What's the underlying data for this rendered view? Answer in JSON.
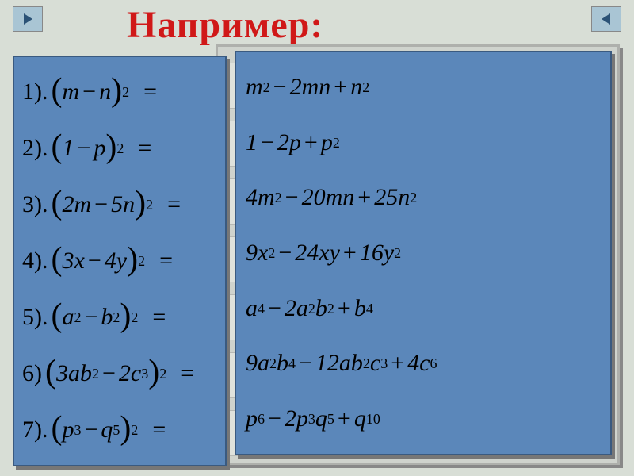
{
  "title": "Например:",
  "colors": {
    "background": "#d8ded6",
    "panel": "#5b87ba",
    "panel_border": "#3a5a80",
    "nav_button": "#a9c5d4",
    "title": "#d01818",
    "back_panel": "#cfd3cd",
    "back_row": "#dfe2dc"
  },
  "nav": {
    "prev_icon": "triangle-right",
    "next_icon": "triangle-left"
  },
  "back_panel": {
    "row_count": 7,
    "row_top_start": 20,
    "row_spacing": 73
  },
  "problems": [
    {
      "label": "1).",
      "a": "m",
      "op": "−",
      "b": "n",
      "exp": "2"
    },
    {
      "label": "2).",
      "a": "1",
      "op": "−",
      "b": "p",
      "exp": "2"
    },
    {
      "label": "3).",
      "a": "2m",
      "op": "−",
      "b": "5n",
      "exp": "2"
    },
    {
      "label": "4).",
      "a": "3x",
      "op": "−",
      "b": "4y",
      "exp": "2"
    },
    {
      "label": "5).",
      "a": "a",
      "asup": "2",
      "op": "−",
      "b": "b",
      "bsup": "2",
      "exp": "2"
    },
    {
      "label": "6)",
      "a": "3ab",
      "asup": "2",
      "op": "−",
      "b": "2c",
      "bsup": "3",
      "exp": "2"
    },
    {
      "label": "7).",
      "a": "p",
      "asup": "3",
      "op": "−",
      "b": "q",
      "bsup": "5",
      "exp": "2"
    }
  ],
  "answers": [
    {
      "t1": "m",
      "t1s": "2",
      "op1": "−",
      "t2": "2mn",
      "op2": "+",
      "t3": "n",
      "t3s": "2"
    },
    {
      "t1": "1",
      "op1": "−",
      "t2": "2p",
      "op2": "+",
      "t3": "p",
      "t3s": "2"
    },
    {
      "t1": "4m",
      "t1s": "2",
      "op1": "−",
      "t2": "20mn",
      "op2": "+",
      "t3": "25n",
      "t3s": "2"
    },
    {
      "t1": "9x",
      "t1s": "2",
      "op1": "−",
      "t2": "24xy",
      "op2": "+",
      "t3": "16y",
      "t3s": "2"
    },
    {
      "t1": "a",
      "t1s": "4",
      "op1": "−",
      "t2": "2a",
      "t2s": "2",
      "t2b": "b",
      "t2bs": "2",
      "op2": "+",
      "t3": "b",
      "t3s": "4"
    },
    {
      "t1": "9a",
      "t1s": "2",
      "t1b": "b",
      "t1bs": "4",
      "op1": "−",
      "t2": "12ab",
      "t2s": "2",
      "t2b": "c",
      "t2bs": "3",
      "op2": "+",
      "t3": "4c",
      "t3s": "6"
    },
    {
      "t1": "p",
      "t1s": "6",
      "op1": "−",
      "t2": "2p",
      "t2s": "3",
      "t2b": "q",
      "t2bs": "5",
      "op2": "+",
      "t3": "q",
      "t3s": "10"
    }
  ],
  "typography": {
    "title_fontsize": 48,
    "equation_fontsize": 30,
    "superscript_fontsize": 18,
    "font_family": "Times New Roman"
  }
}
